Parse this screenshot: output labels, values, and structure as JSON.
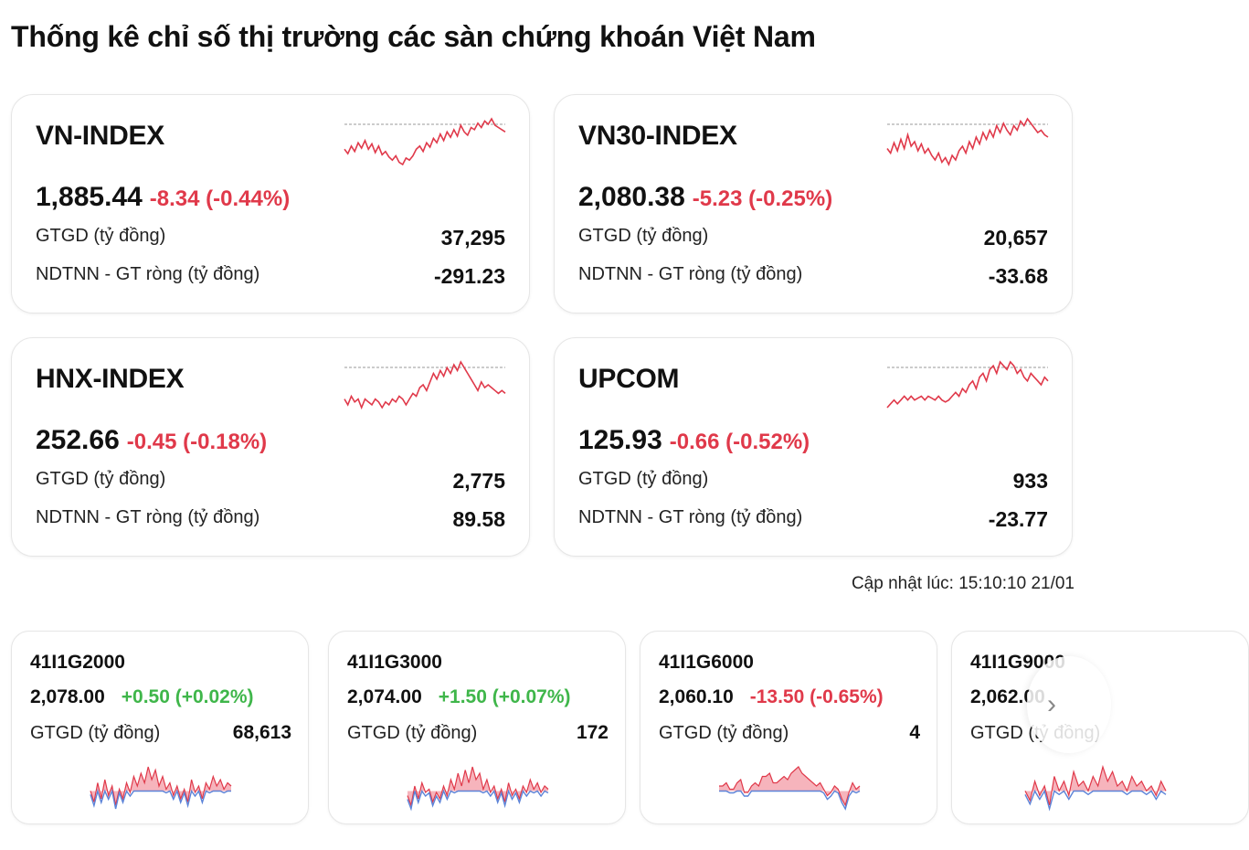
{
  "page": {
    "title": "Thống kê chỉ số thị trường các sàn chứng khoán Việt Nam"
  },
  "indices": [
    {
      "name": "VN-INDEX",
      "value": "1,885.44",
      "change": "-8.34 (-0.44%)",
      "trend": "down",
      "gtgd_label": "GTGD (tỷ đồng)",
      "gtgd_value": "37,295",
      "ndtnn_label": "NDTNN - GT ròng (tỷ đồng)",
      "ndtnn_value": "-291.23",
      "spark": [
        52,
        48,
        55,
        50,
        58,
        53,
        60,
        52,
        57,
        49,
        55,
        47,
        50,
        45,
        42,
        46,
        40,
        38,
        44,
        42,
        46,
        52,
        55,
        50,
        58,
        54,
        62,
        58,
        66,
        60,
        68,
        63,
        70,
        64,
        74,
        68,
        65,
        72,
        70,
        76,
        72,
        78,
        75,
        80,
        74,
        72,
        70,
        68
      ]
    },
    {
      "name": "VN30-INDEX",
      "value": "2,080.38",
      "change": "-5.23 (-0.25%)",
      "trend": "down",
      "gtgd_label": "GTGD (tỷ đồng)",
      "gtgd_value": "20,657",
      "ndtnn_label": "NDTNN - GT ròng (tỷ đồng)",
      "ndtnn_value": "-33.68",
      "spark": [
        50,
        46,
        55,
        48,
        58,
        50,
        62,
        52,
        56,
        48,
        54,
        46,
        50,
        44,
        40,
        46,
        38,
        42,
        36,
        44,
        40,
        48,
        52,
        46,
        56,
        50,
        60,
        54,
        64,
        58,
        66,
        60,
        70,
        64,
        72,
        66,
        62,
        70,
        66,
        74,
        70,
        76,
        72,
        68,
        64,
        66,
        62,
        60
      ]
    },
    {
      "name": "HNX-INDEX",
      "value": "252.66",
      "change": "-0.45 (-0.18%)",
      "trend": "down",
      "gtgd_label": "GTGD (tỷ đồng)",
      "gtgd_value": "2,775",
      "ndtnn_label": "NDTNN - GT ròng (tỷ đồng)",
      "ndtnn_value": "89.58",
      "spark": [
        40,
        36,
        42,
        38,
        40,
        34,
        40,
        38,
        36,
        40,
        38,
        34,
        38,
        36,
        40,
        38,
        42,
        40,
        36,
        40,
        44,
        42,
        48,
        50,
        46,
        52,
        58,
        54,
        60,
        56,
        62,
        58,
        64,
        60,
        66,
        62,
        58,
        54,
        50,
        46,
        52,
        48,
        50,
        48,
        46,
        44,
        46,
        44
      ]
    },
    {
      "name": "UPCOM",
      "value": "125.93",
      "change": "-0.66 (-0.52%)",
      "trend": "down",
      "gtgd_label": "GTGD (tỷ đồng)",
      "gtgd_value": "933",
      "ndtnn_label": "NDTNN - GT ròng (tỷ đồng)",
      "ndtnn_value": "-23.77",
      "spark": [
        38,
        40,
        42,
        40,
        42,
        44,
        42,
        44,
        42,
        43,
        44,
        42,
        44,
        43,
        42,
        44,
        42,
        41,
        42,
        44,
        46,
        44,
        48,
        46,
        50,
        52,
        48,
        54,
        56,
        52,
        58,
        60,
        56,
        62,
        60,
        58,
        62,
        60,
        56,
        58,
        54,
        52,
        56,
        54,
        52,
        50,
        54,
        52
      ]
    }
  ],
  "updated": {
    "label": "Cập nhật lúc:",
    "time": "15:10:10 21/01"
  },
  "derivatives": [
    {
      "code": "41I1G2000",
      "price": "2,078.00",
      "change": "+0.50 (+0.02%)",
      "trend": "up",
      "gtgd_label": "GTGD (tỷ đồng)",
      "gtgd_value": "68,613",
      "spark": [
        55,
        48,
        60,
        50,
        62,
        52,
        58,
        46,
        56,
        50,
        60,
        54,
        64,
        58,
        66,
        60,
        70,
        62,
        68,
        58,
        64,
        56,
        60,
        52,
        58,
        50,
        56,
        48,
        62,
        54,
        58,
        50,
        60,
        56,
        64,
        58,
        62,
        56,
        60,
        58
      ]
    },
    {
      "code": "41I1G3000",
      "price": "2,074.00",
      "change": "+1.50 (+0.07%)",
      "trend": "up",
      "gtgd_label": "GTGD (tỷ đồng)",
      "gtgd_value": "172",
      "spark": [
        52,
        46,
        58,
        50,
        60,
        54,
        56,
        48,
        54,
        50,
        58,
        52,
        62,
        56,
        66,
        58,
        68,
        60,
        70,
        62,
        66,
        56,
        62,
        54,
        58,
        50,
        56,
        48,
        60,
        52,
        56,
        50,
        58,
        54,
        62,
        56,
        60,
        54,
        58,
        56
      ]
    },
    {
      "code": "41I1G6000",
      "price": "2,060.10",
      "change": "-13.50 (-0.65%)",
      "trend": "down",
      "gtgd_label": "GTGD (tỷ đồng)",
      "gtgd_value": "4",
      "spark": [
        60,
        60,
        62,
        58,
        58,
        62,
        64,
        56,
        56,
        60,
        62,
        60,
        66,
        66,
        68,
        62,
        62,
        64,
        66,
        64,
        68,
        70,
        72,
        68,
        66,
        64,
        62,
        60,
        62,
        58,
        54,
        56,
        60,
        58,
        52,
        48,
        56,
        62,
        58,
        60
      ]
    },
    {
      "code": "41I1G9000",
      "price": "2,062.00",
      "change": "",
      "trend": "down",
      "gtgd_label": "GTGD (tỷ đồng)",
      "gtgd_value": "",
      "spark": [
        56,
        52,
        60,
        54,
        58,
        50,
        62,
        56,
        60,
        54,
        64,
        58,
        60,
        56,
        62,
        58,
        66,
        60,
        64,
        58,
        60,
        56,
        62,
        58,
        60,
        56,
        58,
        54,
        60,
        56
      ]
    }
  ],
  "colors": {
    "down": "#e0394a",
    "up": "#3fb64a",
    "fill_down": "#f6b4bc",
    "fill_up": "#b9cff2",
    "base": "#5b83d8",
    "ref": "#999999"
  },
  "icons": {
    "next": "chevron-right-icon"
  }
}
